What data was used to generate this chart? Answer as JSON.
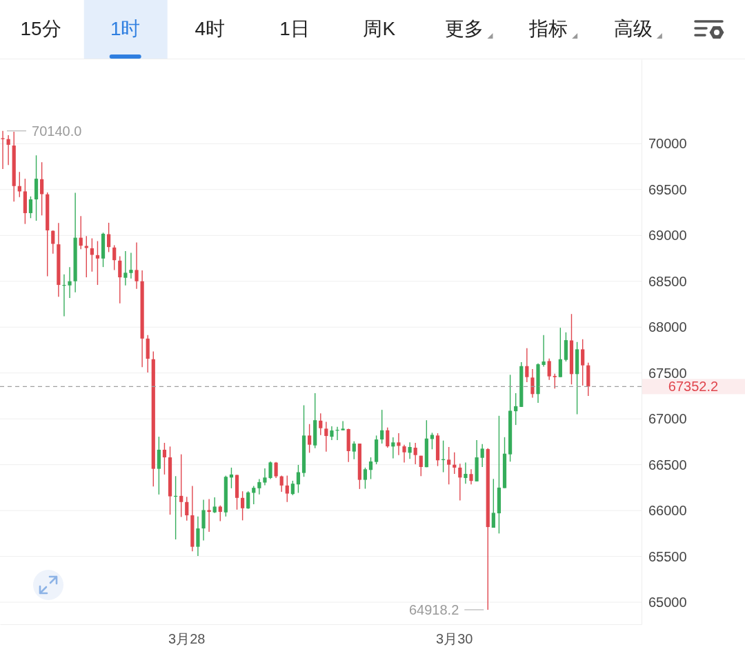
{
  "chart_data": {
    "type": "candlestick",
    "annotations": [
      "15分",
      "1时",
      "4时",
      "1日",
      "周K",
      "更多",
      "指标",
      "高级",
      "70140.0",
      "64918.2"
    ],
    "categories": [
      null,
      null,
      null,
      null,
      null,
      null,
      null,
      null,
      null,
      null,
      null,
      null,
      null,
      null,
      null,
      null,
      null,
      null,
      null,
      null,
      null,
      null,
      null,
      null,
      null,
      null,
      null,
      null,
      null,
      null,
      null,
      null,
      null,
      "3月28",
      null,
      null,
      null,
      null,
      null,
      null,
      null,
      null,
      null,
      null,
      null,
      null,
      null,
      null,
      null,
      null,
      null,
      null,
      null,
      null,
      null,
      null,
      null,
      null,
      null,
      null,
      null,
      null,
      null,
      null,
      null,
      null,
      null,
      null,
      null,
      null,
      null,
      null,
      null,
      null,
      null,
      null,
      null,
      null,
      null,
      null,
      null,
      "3月30",
      null,
      null,
      null,
      null,
      null,
      null,
      null,
      null,
      null,
      null,
      null,
      null,
      null,
      null,
      null,
      null,
      null,
      null,
      null,
      null,
      null,
      null,
      null,
      null
    ],
    "ohlc": [
      [
        70060,
        70140,
        69725,
        70050
      ],
      [
        70050,
        70093,
        69768,
        69988
      ],
      [
        69980,
        70130,
        69368,
        69538
      ],
      [
        69538,
        69693,
        69418,
        69480
      ],
      [
        69480,
        69618,
        69125,
        69243
      ],
      [
        69243,
        69425,
        69188,
        69393
      ],
      [
        69393,
        69873,
        69160,
        69618
      ],
      [
        69613,
        69798,
        69218,
        69450
      ],
      [
        69448,
        69468,
        68555,
        69055
      ],
      [
        69050,
        69055,
        68800,
        68908
      ],
      [
        68903,
        69135,
        68330,
        68460
      ],
      [
        68455,
        68575,
        68118,
        68460
      ],
      [
        68455,
        68655,
        68318,
        68500
      ],
      [
        68500,
        69465,
        68380,
        68975
      ],
      [
        68975,
        69210,
        68850,
        68888
      ],
      [
        68885,
        68993,
        68543,
        68863
      ],
      [
        68860,
        68968,
        68605,
        68788
      ],
      [
        68785,
        68938,
        68460,
        68748
      ],
      [
        68748,
        69030,
        68655,
        69018
      ],
      [
        69013,
        69138,
        68818,
        68873
      ],
      [
        68868,
        68893,
        68623,
        68730
      ],
      [
        68725,
        68773,
        68260,
        68543
      ],
      [
        68538,
        68830,
        68455,
        68593
      ],
      [
        68590,
        68810,
        68530,
        68625
      ],
      [
        68623,
        68923,
        68418,
        68500
      ],
      [
        68500,
        68618,
        67563,
        67875
      ],
      [
        67875,
        67913,
        67505,
        67655
      ],
      [
        67650,
        67735,
        66263,
        66455
      ],
      [
        66455,
        66805,
        66175,
        66663
      ],
      [
        66663,
        66738,
        66393,
        66580
      ],
      [
        66580,
        66698,
        65955,
        66155
      ],
      [
        66155,
        66375,
        65685,
        66160
      ],
      [
        66160,
        66613,
        65930,
        66093
      ],
      [
        66093,
        66150,
        65890,
        65948
      ],
      [
        65948,
        66268,
        65555,
        65605
      ],
      [
        65605,
        65935,
        65505,
        65805
      ],
      [
        65805,
        66118,
        65673,
        66005
      ],
      [
        66005,
        66125,
        65768,
        65985
      ],
      [
        65980,
        66143,
        65973,
        66043
      ],
      [
        66043,
        66055,
        65885,
        65985
      ],
      [
        65980,
        66380,
        65935,
        66368
      ],
      [
        66360,
        66468,
        66243,
        66393
      ],
      [
        66388,
        66390,
        66010,
        66138
      ],
      [
        66138,
        66210,
        65893,
        66025
      ],
      [
        66023,
        66210,
        66018,
        66198
      ],
      [
        66193,
        66268,
        66068,
        66248
      ],
      [
        66243,
        66343,
        66175,
        66310
      ],
      [
        66305,
        66460,
        66275,
        66360
      ],
      [
        66355,
        66535,
        66343,
        66525
      ],
      [
        66523,
        66530,
        66355,
        66373
      ],
      [
        66373,
        66380,
        66205,
        66273
      ],
      [
        66273,
        66380,
        66093,
        66185
      ],
      [
        66180,
        66325,
        66168,
        66293
      ],
      [
        66285,
        66498,
        66193,
        66418
      ],
      [
        66410,
        67148,
        66368,
        66818
      ],
      [
        66818,
        66943,
        66630,
        66718
      ],
      [
        66710,
        67280,
        66680,
        66985
      ],
      [
        66980,
        67060,
        66823,
        66898
      ],
      [
        66893,
        66968,
        66643,
        66813
      ],
      [
        66805,
        66918,
        66768,
        66873
      ],
      [
        66873,
        66913,
        66768,
        66880
      ],
      [
        66875,
        66975,
        66875,
        66893
      ],
      [
        66888,
        66893,
        66530,
        66648
      ],
      [
        66643,
        66755,
        66560,
        66730
      ],
      [
        66730,
        66730,
        66235,
        66335
      ],
      [
        66335,
        66468,
        66238,
        66450
      ],
      [
        66443,
        66580,
        66343,
        66535
      ],
      [
        66530,
        66818,
        66505,
        66775
      ],
      [
        66775,
        67098,
        66730,
        66875
      ],
      [
        66875,
        66905,
        66685,
        66700
      ],
      [
        66698,
        66798,
        66568,
        66743
      ],
      [
        66743,
        66843,
        66605,
        66705
      ],
      [
        66700,
        66718,
        66523,
        66635
      ],
      [
        66630,
        66743,
        66563,
        66693
      ],
      [
        66685,
        66738,
        66505,
        66605
      ],
      [
        66598,
        66598,
        66375,
        66475
      ],
      [
        66473,
        66985,
        66473,
        66785
      ],
      [
        66780,
        66848,
        66668,
        66825
      ],
      [
        66818,
        66843,
        66485,
        66548
      ],
      [
        66550,
        66763,
        66418,
        66560
      ],
      [
        66555,
        66693,
        66285,
        66500
      ],
      [
        66500,
        66635,
        66400,
        66468
      ],
      [
        66468,
        66510,
        66110,
        66360
      ],
      [
        66355,
        66523,
        66293,
        66400
      ],
      [
        66398,
        66450,
        66285,
        66323
      ],
      [
        66318,
        66768,
        66318,
        66580
      ],
      [
        66575,
        66725,
        66475,
        66675
      ],
      [
        66670,
        66680,
        64918.2,
        65820
      ],
      [
        65813,
        66345,
        65813,
        65975
      ],
      [
        65970,
        67033,
        65750,
        66250
      ],
      [
        66245,
        66800,
        66245,
        66620
      ],
      [
        66613,
        67480,
        66533,
        67088
      ],
      [
        67083,
        67280,
        66933,
        67138
      ],
      [
        67130,
        67618,
        67130,
        67575
      ],
      [
        67575,
        67770,
        67400,
        67455
      ],
      [
        67450,
        67543,
        67230,
        67270
      ],
      [
        67270,
        67605,
        67175,
        67595
      ],
      [
        67588,
        67913,
        67570,
        67625
      ],
      [
        67630,
        67658,
        67425,
        67463
      ],
      [
        67468,
        67493,
        67330,
        67455
      ],
      [
        67455,
        67993,
        67455,
        67650
      ],
      [
        67643,
        67943,
        67625,
        67858
      ],
      [
        67855,
        68143,
        67375,
        67488
      ],
      [
        67488,
        67838,
        67050,
        67758
      ],
      [
        67758,
        67868,
        67363,
        67583
      ],
      [
        67583,
        67613,
        67250,
        67352.2
      ]
    ],
    "colors": [
      "#e0464e",
      "#e0464e",
      "#e0464e",
      "#e0464e",
      "#e0464e",
      "#35ad5b",
      "#35ad5b",
      "#e0464e",
      "#e0464e",
      "#e0464e",
      "#e0464e",
      "#35ad5b",
      "#35ad5b",
      "#35ad5b",
      "#e0464e",
      "#e0464e",
      "#e0464e",
      "#e0464e",
      "#35ad5b",
      "#e0464e",
      "#e0464e",
      "#e0464e",
      "#35ad5b",
      "#35ad5b",
      "#e0464e",
      "#e0464e",
      "#e0464e",
      "#e0464e",
      "#35ad5b",
      "#e0464e",
      "#e0464e",
      "#35ad5b",
      "#e0464e",
      "#e0464e",
      "#e0464e",
      "#35ad5b",
      "#35ad5b",
      "#e0464e",
      "#35ad5b",
      "#e0464e",
      "#35ad5b",
      "#35ad5b",
      "#e0464e",
      "#e0464e",
      "#35ad5b",
      "#35ad5b",
      "#35ad5b",
      "#35ad5b",
      "#35ad5b",
      "#e0464e",
      "#e0464e",
      "#e0464e",
      "#35ad5b",
      "#35ad5b",
      "#35ad5b",
      "#e0464e",
      "#35ad5b",
      "#e0464e",
      "#e0464e",
      "#35ad5b",
      "#35ad5b",
      "#35ad5b",
      "#e0464e",
      "#35ad5b",
      "#e0464e",
      "#35ad5b",
      "#35ad5b",
      "#35ad5b",
      "#35ad5b",
      "#e0464e",
      "#35ad5b",
      "#e0464e",
      "#e0464e",
      "#35ad5b",
      "#e0464e",
      "#e0464e",
      "#35ad5b",
      "#35ad5b",
      "#e0464e",
      "#35ad5b",
      "#e0464e",
      "#e0464e",
      "#e0464e",
      "#35ad5b",
      "#e0464e",
      "#35ad5b",
      "#35ad5b",
      "#e0464e",
      "#35ad5b",
      "#35ad5b",
      "#35ad5b",
      "#35ad5b",
      "#35ad5b",
      "#35ad5b",
      "#e0464e",
      "#e0464e",
      "#35ad5b",
      "#35ad5b",
      "#e0464e",
      "#e0464e",
      "#35ad5b",
      "#35ad5b",
      "#e0464e",
      "#35ad5b",
      "#e0464e",
      "#e0464e"
    ],
    "ylim": [
      64760,
      70920
    ],
    "yticks": [
      65000,
      65500,
      66000,
      66500,
      67000,
      67500,
      68000,
      68500,
      69000,
      69500,
      70000
    ],
    "grid": "y",
    "ref_lines": [
      {
        "axis": "y",
        "value": 67352.2,
        "label": "67352.2",
        "color": "#a0a0a0",
        "line_style": "dashed"
      }
    ]
  }
}
